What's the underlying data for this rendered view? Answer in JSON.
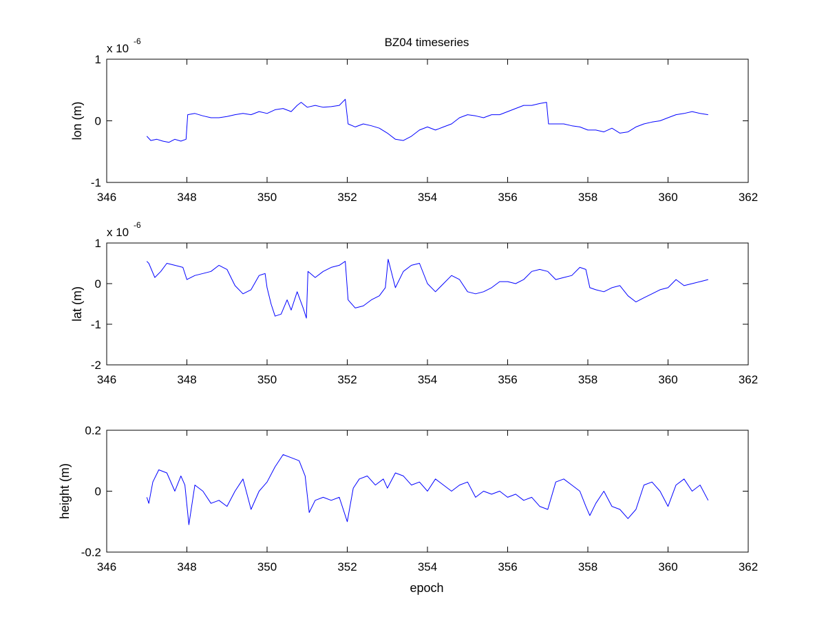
{
  "figure": {
    "title": "BZ04 timeseries",
    "xlabel": "epoch",
    "line_color": "#0000ff",
    "axis_color": "#000000",
    "background": "#ffffff"
  },
  "chart_data": [
    {
      "type": "line",
      "title": "BZ04 timeseries",
      "xlabel": "",
      "ylabel": "lon (m)",
      "scale_label": "x 10",
      "scale_exponent": "-6",
      "xlim": [
        346,
        362
      ],
      "ylim": [
        -1,
        1
      ],
      "xticks": [
        346,
        348,
        350,
        352,
        354,
        356,
        358,
        360,
        362
      ],
      "yticks": [
        -1,
        0,
        1
      ],
      "grid": false,
      "series": [
        {
          "color": "#0000ff",
          "x": [
            347.0,
            347.1,
            347.25,
            347.4,
            347.55,
            347.7,
            347.85,
            347.98,
            348.02,
            348.2,
            348.4,
            348.6,
            348.8,
            349.0,
            349.2,
            349.4,
            349.6,
            349.8,
            350.0,
            350.2,
            350.4,
            350.6,
            350.75,
            350.85,
            351.0,
            351.2,
            351.4,
            351.6,
            351.8,
            351.95,
            352.02,
            352.2,
            352.4,
            352.6,
            352.8,
            353.0,
            353.2,
            353.4,
            353.6,
            353.8,
            354.0,
            354.2,
            354.4,
            354.6,
            354.8,
            355.0,
            355.2,
            355.4,
            355.6,
            355.8,
            356.0,
            356.2,
            356.4,
            356.6,
            356.8,
            356.97,
            357.02,
            357.2,
            357.4,
            357.6,
            357.8,
            358.0,
            358.2,
            358.4,
            358.6,
            358.8,
            359.0,
            359.2,
            359.4,
            359.6,
            359.8,
            360.0,
            360.2,
            360.4,
            360.6,
            360.8,
            361.0
          ],
          "y": [
            -0.25,
            -0.32,
            -0.3,
            -0.33,
            -0.35,
            -0.3,
            -0.33,
            -0.3,
            0.1,
            0.12,
            0.08,
            0.05,
            0.05,
            0.07,
            0.1,
            0.12,
            0.1,
            0.15,
            0.12,
            0.18,
            0.2,
            0.15,
            0.25,
            0.3,
            0.22,
            0.25,
            0.22,
            0.23,
            0.25,
            0.35,
            -0.05,
            -0.1,
            -0.05,
            -0.08,
            -0.12,
            -0.2,
            -0.3,
            -0.32,
            -0.25,
            -0.15,
            -0.1,
            -0.15,
            -0.1,
            -0.05,
            0.05,
            0.1,
            0.08,
            0.05,
            0.1,
            0.1,
            0.15,
            0.2,
            0.25,
            0.25,
            0.28,
            0.3,
            -0.05,
            -0.05,
            -0.05,
            -0.08,
            -0.1,
            -0.15,
            -0.15,
            -0.18,
            -0.12,
            -0.2,
            -0.18,
            -0.1,
            -0.05,
            -0.02,
            0.0,
            0.05,
            0.1,
            0.12,
            0.15,
            0.12,
            0.1
          ]
        }
      ]
    },
    {
      "type": "line",
      "title": "",
      "xlabel": "",
      "ylabel": "lat (m)",
      "scale_label": "x 10",
      "scale_exponent": "-6",
      "xlim": [
        346,
        362
      ],
      "ylim": [
        -2,
        1
      ],
      "xticks": [
        346,
        348,
        350,
        352,
        354,
        356,
        358,
        360,
        362
      ],
      "yticks": [
        -2,
        -1,
        0,
        1
      ],
      "grid": false,
      "series": [
        {
          "color": "#0000ff",
          "x": [
            347.0,
            347.05,
            347.2,
            347.35,
            347.5,
            347.7,
            347.9,
            348.0,
            348.2,
            348.4,
            348.6,
            348.8,
            349.0,
            349.2,
            349.4,
            349.6,
            349.8,
            349.95,
            350.0,
            350.1,
            350.2,
            350.35,
            350.5,
            350.6,
            350.75,
            350.9,
            350.98,
            351.02,
            351.2,
            351.4,
            351.6,
            351.8,
            351.95,
            352.02,
            352.2,
            352.4,
            352.6,
            352.8,
            352.95,
            353.02,
            353.2,
            353.4,
            353.6,
            353.8,
            354.0,
            354.2,
            354.4,
            354.6,
            354.8,
            355.0,
            355.2,
            355.4,
            355.6,
            355.8,
            356.0,
            356.2,
            356.4,
            356.6,
            356.8,
            357.0,
            357.2,
            357.4,
            357.6,
            357.8,
            357.95,
            358.05,
            358.2,
            358.4,
            358.6,
            358.8,
            359.0,
            359.2,
            359.4,
            359.6,
            359.8,
            360.0,
            360.2,
            360.4,
            360.6,
            360.8,
            361.0
          ],
          "y": [
            0.55,
            0.5,
            0.15,
            0.3,
            0.5,
            0.45,
            0.4,
            0.1,
            0.2,
            0.25,
            0.3,
            0.45,
            0.35,
            -0.05,
            -0.25,
            -0.15,
            0.2,
            0.25,
            -0.1,
            -0.5,
            -0.8,
            -0.75,
            -0.4,
            -0.65,
            -0.2,
            -0.6,
            -0.85,
            0.3,
            0.15,
            0.3,
            0.4,
            0.45,
            0.55,
            -0.4,
            -0.6,
            -0.55,
            -0.4,
            -0.3,
            -0.1,
            0.6,
            -0.1,
            0.3,
            0.45,
            0.5,
            0.0,
            -0.2,
            0.0,
            0.2,
            0.1,
            -0.2,
            -0.25,
            -0.2,
            -0.1,
            0.05,
            0.05,
            0.0,
            0.1,
            0.3,
            0.35,
            0.3,
            0.1,
            0.15,
            0.2,
            0.4,
            0.35,
            -0.1,
            -0.15,
            -0.2,
            -0.1,
            -0.05,
            -0.3,
            -0.45,
            -0.35,
            -0.25,
            -0.15,
            -0.1,
            0.1,
            -0.05,
            0.0,
            0.05,
            0.1
          ]
        }
      ]
    },
    {
      "type": "line",
      "title": "",
      "xlabel": "epoch",
      "ylabel": "height (m)",
      "scale_label": "",
      "scale_exponent": "",
      "xlim": [
        346,
        362
      ],
      "ylim": [
        -0.2,
        0.2
      ],
      "xticks": [
        346,
        348,
        350,
        352,
        354,
        356,
        358,
        360,
        362
      ],
      "yticks": [
        -0.2,
        0,
        0.2
      ],
      "grid": false,
      "series": [
        {
          "color": "#0000ff",
          "x": [
            347.0,
            347.05,
            347.15,
            347.3,
            347.5,
            347.7,
            347.85,
            347.95,
            348.05,
            348.2,
            348.4,
            348.6,
            348.8,
            349.0,
            349.2,
            349.4,
            349.6,
            349.8,
            350.0,
            350.2,
            350.4,
            350.6,
            350.8,
            350.95,
            351.05,
            351.2,
            351.4,
            351.6,
            351.8,
            352.0,
            352.15,
            352.3,
            352.5,
            352.7,
            352.9,
            353.0,
            353.2,
            353.4,
            353.6,
            353.8,
            354.0,
            354.2,
            354.4,
            354.6,
            354.8,
            355.0,
            355.2,
            355.4,
            355.6,
            355.8,
            356.0,
            356.2,
            356.4,
            356.6,
            356.8,
            357.0,
            357.2,
            357.4,
            357.6,
            357.8,
            357.95,
            358.05,
            358.2,
            358.4,
            358.6,
            358.8,
            359.0,
            359.2,
            359.4,
            359.6,
            359.8,
            360.0,
            360.2,
            360.4,
            360.6,
            360.8,
            361.0
          ],
          "y": [
            -0.02,
            -0.04,
            0.03,
            0.07,
            0.06,
            0.0,
            0.05,
            0.02,
            -0.11,
            0.02,
            0.0,
            -0.04,
            -0.03,
            -0.05,
            0.0,
            0.04,
            -0.06,
            0.0,
            0.03,
            0.08,
            0.12,
            0.11,
            0.1,
            0.05,
            -0.07,
            -0.03,
            -0.02,
            -0.03,
            -0.02,
            -0.1,
            0.01,
            0.04,
            0.05,
            0.02,
            0.04,
            0.01,
            0.06,
            0.05,
            0.02,
            0.03,
            0.0,
            0.04,
            0.02,
            0.0,
            0.02,
            0.03,
            -0.02,
            0.0,
            -0.01,
            0.0,
            -0.02,
            -0.01,
            -0.03,
            -0.02,
            -0.05,
            -0.06,
            0.03,
            0.04,
            0.02,
            0.0,
            -0.05,
            -0.08,
            -0.04,
            0.0,
            -0.05,
            -0.06,
            -0.09,
            -0.06,
            0.02,
            0.03,
            0.0,
            -0.05,
            0.02,
            0.04,
            0.0,
            0.02,
            -0.03
          ]
        }
      ]
    }
  ]
}
